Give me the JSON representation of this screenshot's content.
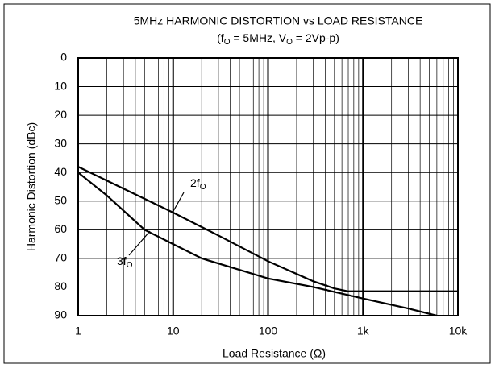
{
  "chart_data": {
    "type": "line",
    "title": "5MHz HARMONIC DISTORTION vs LOAD RESISTANCE",
    "subtitle": [
      {
        "text": "(f"
      },
      {
        "text": "O",
        "sub": true
      },
      {
        "text": " = 5MHz, V"
      },
      {
        "text": "O",
        "sub": true
      },
      {
        "text": " = 2Vp-p)"
      }
    ],
    "x_label": "Load Resistance (Ω)",
    "y_label": "Harmonic Distortion (dBc)",
    "xscale": "log",
    "xlim": [
      1,
      10000
    ],
    "xticks": [
      1,
      10,
      100,
      {
        "value": 1000,
        "label": "1k"
      },
      {
        "value": 10000,
        "label": "10k"
      }
    ],
    "xminorticks": [
      2,
      3,
      4,
      5,
      6,
      7,
      8,
      9,
      20,
      30,
      40,
      50,
      60,
      70,
      80,
      90,
      200,
      300,
      400,
      500,
      600,
      700,
      800,
      900,
      2000,
      3000,
      4000,
      5000,
      6000,
      7000,
      8000,
      9000
    ],
    "ylim": [
      0,
      90
    ],
    "yinverted": true,
    "yticks": [
      0,
      10,
      20,
      30,
      40,
      50,
      60,
      70,
      80,
      90
    ],
    "grid": true,
    "color": "#000000",
    "series": [
      {
        "x": [
          1,
          10,
          30,
          100,
          300,
          500,
          700,
          10000
        ],
        "values": [
          38,
          54,
          62,
          71,
          78,
          80.5,
          81.5,
          81.5
        ]
      },
      {
        "x": [
          1,
          2,
          5,
          10,
          20,
          50,
          100,
          300,
          1000,
          3000,
          6000
        ],
        "values": [
          40,
          48,
          60,
          65,
          70,
          74,
          77,
          80,
          84,
          87.5,
          90
        ]
      }
    ],
    "annotations": [
      [
        {
          "text": "2f"
        },
        {
          "text": "O",
          "sub": true
        }
      ],
      [
        {
          "text": "3f"
        },
        {
          "text": "O",
          "sub": true
        }
      ]
    ]
  }
}
